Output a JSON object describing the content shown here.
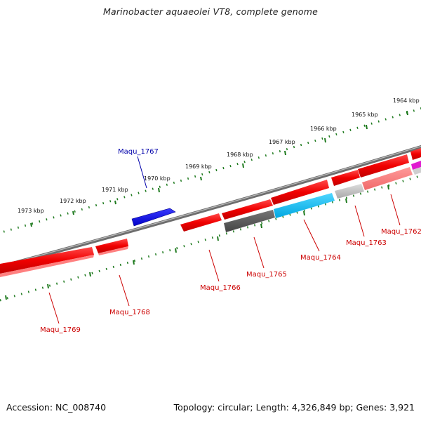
{
  "title": "Marinobacter aquaeolei VT8, complete genome",
  "footer": {
    "accession": "Accession: NC_008740",
    "summary": "Topology: circular; Length: 4,326,849 bp; Genes: 3,921"
  },
  "colors": {
    "backbone": "#7a7a7a",
    "ruler": "#1e7a1e",
    "forward_gene": "#0000ff",
    "reverse_gene": "#ff0000",
    "reverse_gene_label": "#cc0000",
    "forward_gene_label": "#0000aa"
  },
  "ruler_labels": [
    "1964 kbp",
    "1965 kbp",
    "1966 kbp",
    "1967 kbp",
    "1968 kbp",
    "1969 kbp",
    "1970 kbp",
    "1971 kbp",
    "1972 kbp",
    "1973 kbp"
  ],
  "gene_labels": {
    "maqu_1767": "Maqu_1767",
    "maqu_1762": "Maqu_1762",
    "maqu_1763": "Maqu_1763",
    "maqu_1764": "Maqu_1764",
    "maqu_1765": "Maqu_1765",
    "maqu_1766": "Maqu_1766",
    "maqu_1768": "Maqu_1768",
    "maqu_1769": "Maqu_1769"
  }
}
